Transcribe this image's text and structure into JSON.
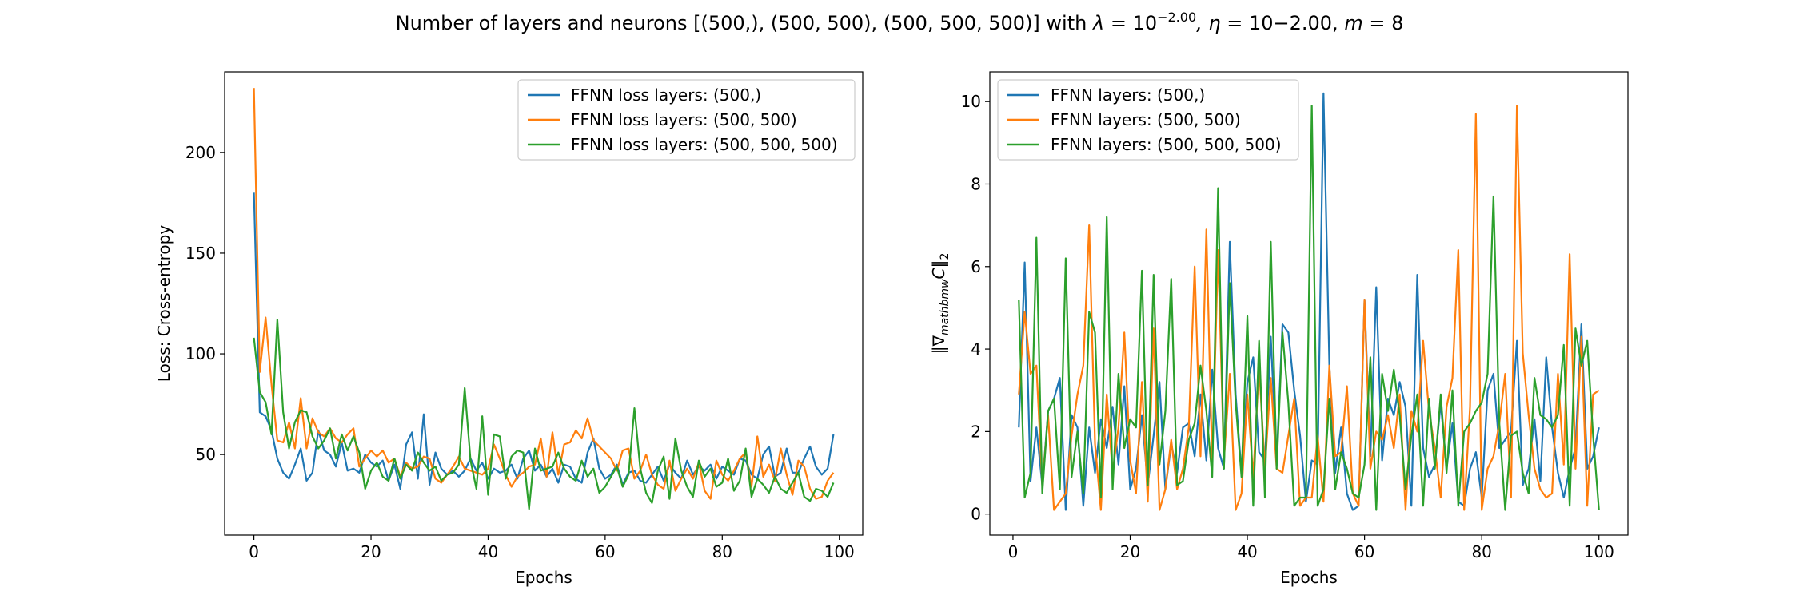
{
  "figure": {
    "title": "Number of layers and neurons [(500,), (500, 500), (500, 500, 500)] with λ = 10^{−2.00}, η = 10−2.00, m = 8",
    "title_parts": {
      "prefix": "Number of layers and neurons [(500,), (500, 500), (500, 500, 500)] with ",
      "lambda": "λ",
      "eq1": " = 10",
      "exp": "−2.00",
      "eta": ", η",
      "eq2": " = 10−2.00, ",
      "m": "m",
      "eq3": " = 8"
    }
  },
  "chart_data": [
    {
      "type": "line",
      "xlabel": "Epochs",
      "ylabel": "Loss: Cross-entropy",
      "xlim": [
        -5,
        104
      ],
      "ylim": [
        10,
        240
      ],
      "xticks": [
        0,
        20,
        40,
        60,
        80,
        100
      ],
      "yticks": [
        50,
        100,
        150,
        200
      ],
      "grid": false,
      "legend_position": "upper right",
      "x": [
        0,
        1,
        2,
        3,
        4,
        5,
        6,
        7,
        8,
        9,
        10,
        11,
        12,
        13,
        14,
        15,
        16,
        17,
        18,
        19,
        20,
        21,
        22,
        23,
        24,
        25,
        26,
        27,
        28,
        29,
        30,
        31,
        32,
        33,
        34,
        35,
        36,
        37,
        38,
        39,
        40,
        41,
        42,
        43,
        44,
        45,
        46,
        47,
        48,
        49,
        50,
        51,
        52,
        53,
        54,
        55,
        56,
        57,
        58,
        59,
        60,
        61,
        62,
        63,
        64,
        65,
        66,
        67,
        68,
        69,
        70,
        71,
        72,
        73,
        74,
        75,
        76,
        77,
        78,
        79,
        80,
        81,
        82,
        83,
        84,
        85,
        86,
        87,
        88,
        89,
        90,
        91,
        92,
        93,
        94,
        95,
        96,
        97,
        98,
        99
      ],
      "series": [
        {
          "name": "FFNN loss layers: (500,)",
          "color": "#1f77b4",
          "values": [
            180,
            71,
            69,
            62,
            48,
            41,
            38,
            45,
            53,
            37,
            41,
            62,
            52,
            50,
            44,
            56,
            42,
            43,
            41,
            50,
            46,
            44,
            47,
            37,
            45,
            33,
            55,
            61,
            38,
            70,
            35,
            51,
            43,
            40,
            42,
            39,
            42,
            48,
            42,
            46,
            38,
            43,
            41,
            42,
            45,
            38,
            48,
            52,
            42,
            45,
            39,
            43,
            36,
            45,
            44,
            38,
            36,
            51,
            58,
            43,
            38,
            40,
            45,
            35,
            41,
            42,
            37,
            36,
            40,
            44,
            37,
            45,
            41,
            38,
            47,
            40,
            44,
            42,
            45,
            38,
            44,
            42,
            40,
            48,
            47,
            40,
            38,
            50,
            54,
            39,
            41,
            53,
            41,
            41,
            48,
            54,
            44,
            40,
            43,
            60
          ]
        },
        {
          "name": "FFNN loss layers: (500, 500)",
          "color": "#ff7f0e",
          "values": [
            232,
            91,
            118,
            85,
            57,
            56,
            66,
            53,
            78,
            53,
            68,
            61,
            59,
            63,
            58,
            56,
            60,
            63,
            44,
            48,
            52,
            49,
            52,
            46,
            48,
            39,
            46,
            43,
            44,
            49,
            48,
            38,
            36,
            40,
            44,
            49,
            43,
            42,
            41,
            40,
            43,
            55,
            48,
            40,
            34,
            39,
            41,
            44,
            45,
            58,
            39,
            61,
            40,
            55,
            56,
            62,
            58,
            68,
            57,
            54,
            51,
            48,
            42,
            52,
            53,
            38,
            42,
            50,
            40,
            35,
            33,
            47,
            32,
            38,
            43,
            38,
            46,
            32,
            28,
            47,
            40,
            37,
            42,
            48,
            51,
            34,
            59,
            39,
            45,
            37,
            53,
            40,
            30,
            47,
            44,
            33,
            28,
            29,
            37,
            41
          ]
        },
        {
          "name": "FFNN loss layers: (500, 500, 500)",
          "color": "#2ca02c",
          "values": [
            108,
            81,
            76,
            60,
            117,
            71,
            53,
            66,
            72,
            71,
            59,
            53,
            57,
            63,
            48,
            60,
            52,
            59,
            51,
            33,
            42,
            46,
            39,
            37,
            48,
            38,
            45,
            42,
            51,
            46,
            42,
            44,
            37,
            40,
            41,
            45,
            83,
            47,
            33,
            69,
            30,
            60,
            59,
            38,
            49,
            52,
            51,
            23,
            53,
            42,
            43,
            44,
            51,
            43,
            39,
            37,
            47,
            39,
            43,
            31,
            34,
            39,
            44,
            34,
            40,
            73,
            43,
            31,
            26,
            42,
            49,
            28,
            58,
            42,
            34,
            29,
            47,
            39,
            43,
            34,
            36,
            48,
            32,
            37,
            53,
            29,
            38,
            35,
            31,
            39,
            33,
            31,
            36,
            41,
            29,
            27,
            33,
            32,
            29,
            36
          ]
        }
      ]
    },
    {
      "type": "line",
      "xlabel": "Epochs",
      "ylabel": "‖∇_{mathbmw}C‖₂",
      "ylabel_parts": {
        "left": "‖∇",
        "sub": "mathbmw",
        "mid": "C",
        "right": "‖",
        "end_sub": "2"
      },
      "xlim": [
        -3.95,
        104.95
      ],
      "ylim": [
        -0.51,
        10.72
      ],
      "xticks": [
        0,
        20,
        40,
        60,
        80,
        100
      ],
      "yticks": [
        0,
        2,
        4,
        6,
        8,
        10
      ],
      "grid": false,
      "legend_position": "upper left",
      "x": [
        1,
        2,
        3,
        4,
        5,
        6,
        7,
        8,
        9,
        10,
        11,
        12,
        13,
        14,
        15,
        16,
        17,
        18,
        19,
        20,
        21,
        22,
        23,
        24,
        25,
        26,
        27,
        28,
        29,
        30,
        31,
        32,
        33,
        34,
        35,
        36,
        37,
        38,
        39,
        40,
        41,
        42,
        43,
        44,
        45,
        46,
        47,
        48,
        49,
        50,
        51,
        52,
        53,
        54,
        55,
        56,
        57,
        58,
        59,
        60,
        61,
        62,
        63,
        64,
        65,
        66,
        67,
        68,
        69,
        70,
        71,
        72,
        73,
        74,
        75,
        76,
        77,
        78,
        79,
        80,
        81,
        82,
        83,
        84,
        85,
        86,
        87,
        88,
        89,
        90,
        91,
        92,
        93,
        94,
        95,
        96,
        97,
        98,
        99,
        100
      ],
      "series": [
        {
          "name": "FFNN layers: (500,)",
          "color": "#1f77b4",
          "values": [
            2.1,
            6.1,
            0.8,
            2.1,
            0.7,
            2.5,
            2.8,
            3.3,
            0.1,
            2.4,
            2.1,
            0.2,
            2.1,
            1.0,
            2.3,
            1.6,
            2.6,
            1.2,
            3.1,
            0.6,
            1.1,
            2.4,
            0.7,
            1.9,
            3.2,
            0.6,
            1.7,
            1.0,
            2.1,
            2.2,
            1.4,
            2.9,
            1.3,
            3.5,
            1.6,
            1.1,
            6.6,
            2.9,
            1.0,
            3.2,
            3.8,
            1.5,
            1.3,
            4.3,
            1.3,
            4.6,
            4.4,
            3.0,
            1.9,
            0.3,
            1.3,
            1.2,
            10.2,
            3.6,
            1.0,
            2.1,
            0.5,
            0.1,
            0.2,
            5.2,
            1.4,
            5.5,
            1.3,
            2.8,
            2.4,
            3.2,
            2.6,
            0.2,
            5.8,
            1.6,
            0.9,
            1.2,
            2.7,
            1.1,
            2.2,
            0.3,
            0.2,
            1.1,
            1.5,
            0.4,
            3.0,
            3.4,
            1.6,
            1.8,
            2.0,
            4.2,
            0.7,
            1.1,
            2.3,
            0.8,
            3.8,
            2.1,
            1.0,
            0.4,
            1.1,
            1.6,
            4.6,
            1.1,
            1.4,
            2.1
          ]
        },
        {
          "name": "FFNN layers: (500, 500)",
          "color": "#ff7f0e",
          "values": [
            2.9,
            4.9,
            3.4,
            3.6,
            0.7,
            2.4,
            0.1,
            0.3,
            0.5,
            1.9,
            2.9,
            3.6,
            7.0,
            1.7,
            0.1,
            2.9,
            1.0,
            2.1,
            4.4,
            1.3,
            0.5,
            3.2,
            0.3,
            4.5,
            0.1,
            0.6,
            1.8,
            0.6,
            1.1,
            2.1,
            6.0,
            1.4,
            6.9,
            1.2,
            6.4,
            1.3,
            3.4,
            0.1,
            0.5,
            2.9,
            0.9,
            3.6,
            1.1,
            3.3,
            1.1,
            1.0,
            1.9,
            2.8,
            0.2,
            0.4,
            0.4,
            1.9,
            0.3,
            3.6,
            1.4,
            1.5,
            3.1,
            0.5,
            0.2,
            5.2,
            1.1,
            2.0,
            1.8,
            2.4,
            1.6,
            2.9,
            0.1,
            2.5,
            2.0,
            4.2,
            2.5,
            1.6,
            0.4,
            2.6,
            3.3,
            6.4,
            0.1,
            2.6,
            9.7,
            0.1,
            1.1,
            1.4,
            2.2,
            3.4,
            0.4,
            9.9,
            3.9,
            2.4,
            1.1,
            0.6,
            0.4,
            0.5,
            3.4,
            1.2,
            6.3,
            1.1,
            4.3,
            0.2,
            2.9,
            3.0
          ]
        },
        {
          "name": "FFNN layers: (500, 500, 500)",
          "color": "#2ca02c",
          "values": [
            5.2,
            0.4,
            1.0,
            6.7,
            0.5,
            2.5,
            2.8,
            0.6,
            6.2,
            0.9,
            2.0,
            0.5,
            4.9,
            4.4,
            0.4,
            7.2,
            0.6,
            3.4,
            1.6,
            2.3,
            2.1,
            5.9,
            0.7,
            5.8,
            1.2,
            2.5,
            5.7,
            0.7,
            0.8,
            1.8,
            2.2,
            3.6,
            2.5,
            0.9,
            7.9,
            1.1,
            5.6,
            2.7,
            0.9,
            4.8,
            0.2,
            4.2,
            0.4,
            6.6,
            1.1,
            4.4,
            2.7,
            0.2,
            0.4,
            0.4,
            9.9,
            0.2,
            0.6,
            2.8,
            0.6,
            1.5,
            1.1,
            0.5,
            0.4,
            1.2,
            3.8,
            0.1,
            3.4,
            2.5,
            3.5,
            2.4,
            0.6,
            1.9,
            2.9,
            0.2,
            2.8,
            1.1,
            2.9,
            1.0,
            3.0,
            0.2,
            2.0,
            2.2,
            2.5,
            2.7,
            3.4,
            7.7,
            2.2,
            0.1,
            1.9,
            2.0,
            1.0,
            0.5,
            3.3,
            2.4,
            2.3,
            2.1,
            2.4,
            4.1,
            0.2,
            4.5,
            3.6,
            4.2,
            1.9,
            0.1
          ]
        }
      ]
    }
  ]
}
